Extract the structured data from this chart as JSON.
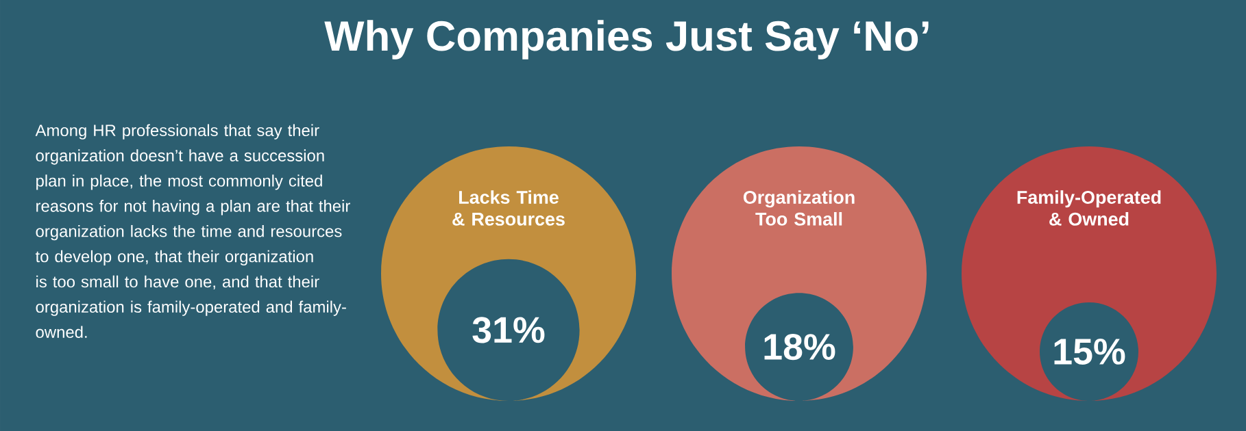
{
  "chart_data": {
    "type": "other",
    "title": "Why Companies Just Say ‘No’",
    "annotations": [
      "Among HR professionals that say their organization doesn’t have a succession plan in place, the most commonly cited reasons for not having a plan are that their organization lacks the time and resources to develop one, that their organization is too small to have one, and that their organization is family-operated and family-owned."
    ],
    "categories": [
      "Lacks Time & Resources",
      "Organization Too Small",
      "Family-Operated & Owned"
    ],
    "values": [
      31,
      18,
      15
    ],
    "value_labels": [
      "31%",
      "18%",
      "15%"
    ],
    "colors": [
      "#c28f3e",
      "#cb6f63",
      "#b74444"
    ]
  }
}
